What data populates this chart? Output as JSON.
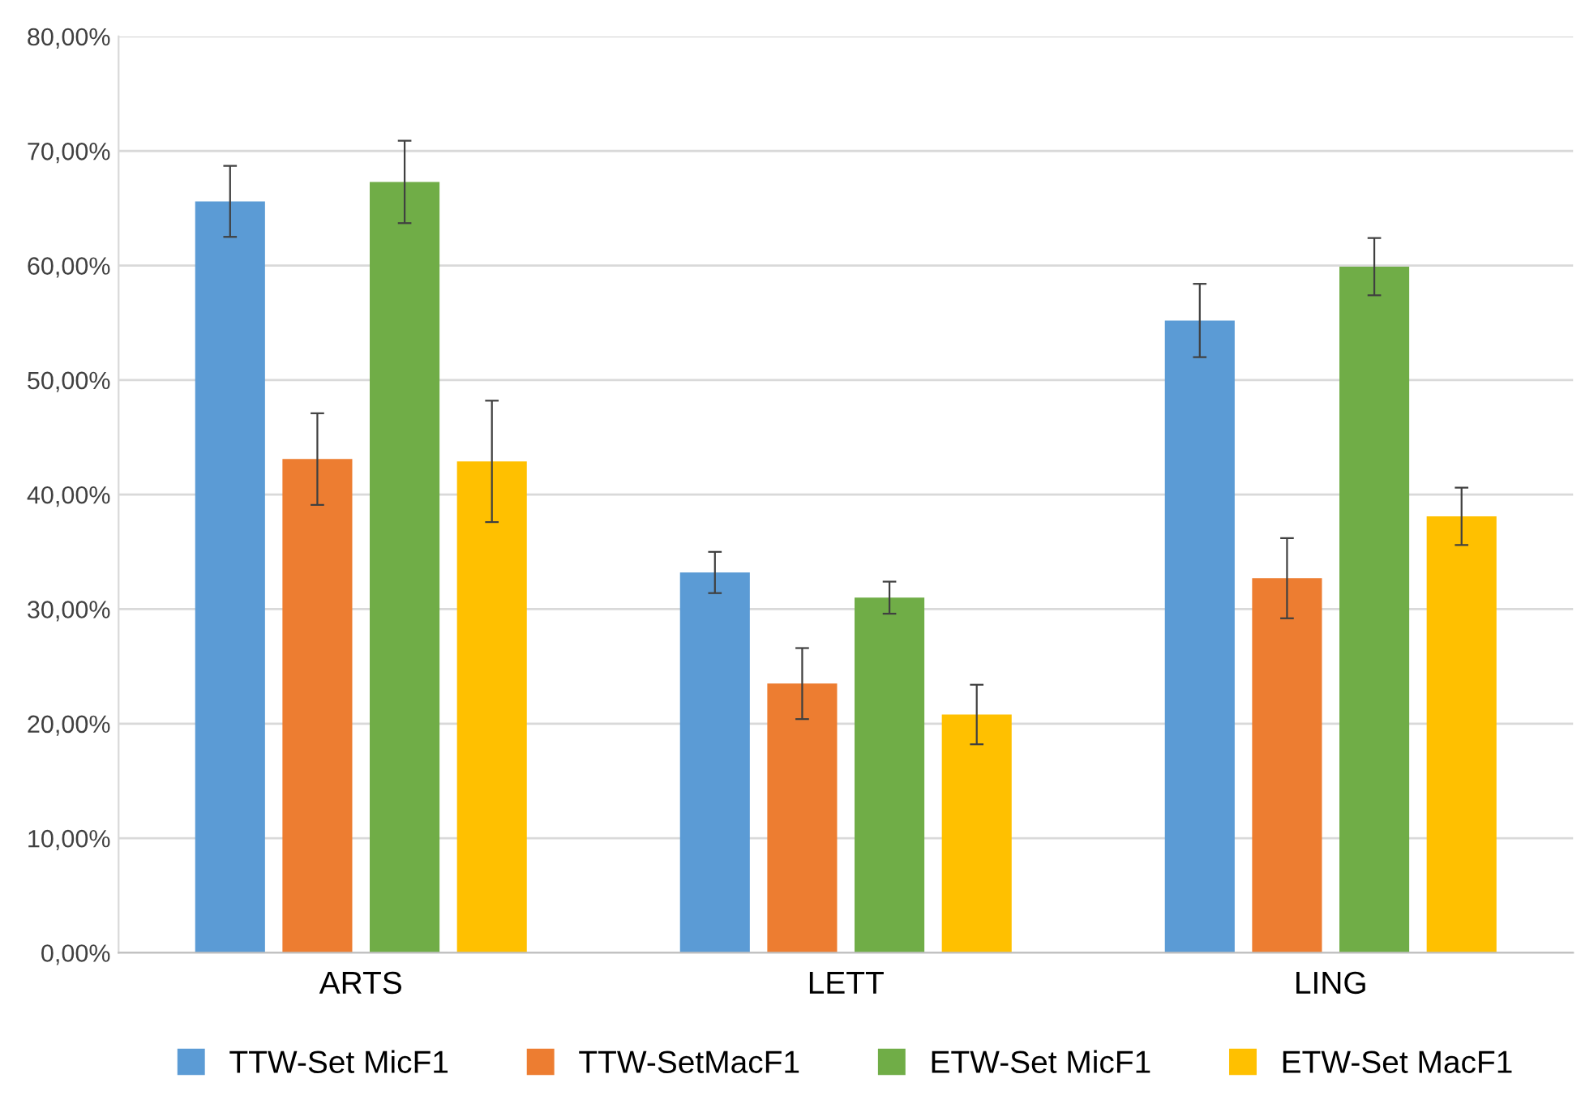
{
  "chart_data": {
    "type": "bar",
    "categories": [
      "ARTS",
      "LETT",
      "LING"
    ],
    "series": [
      {
        "name": "TTW-Set MicF1",
        "color": "#5b9bd5",
        "values": [
          65.6,
          33.2,
          55.2
        ],
        "errors": [
          3.1,
          1.8,
          3.2
        ]
      },
      {
        "name": "TTW-SetMacF1",
        "color": "#ed7d31",
        "values": [
          43.1,
          23.5,
          32.7
        ],
        "errors": [
          4.0,
          3.1,
          3.5
        ]
      },
      {
        "name": "ETW-Set MicF1",
        "color": "#70ad47",
        "values": [
          67.3,
          31.0,
          59.9
        ],
        "errors": [
          3.6,
          1.4,
          2.5
        ]
      },
      {
        "name": "ETW-Set MacF1",
        "color": "#ffc000",
        "values": [
          42.9,
          20.8,
          38.1
        ],
        "errors": [
          5.3,
          2.6,
          2.5
        ]
      }
    ],
    "ylim": [
      0,
      80
    ],
    "yticks": [
      {
        "value": 0,
        "label": "0,00%"
      },
      {
        "value": 10,
        "label": "10,00%"
      },
      {
        "value": 20,
        "label": "20,00%"
      },
      {
        "value": 30,
        "label": "30,00%"
      },
      {
        "value": 40,
        "label": "40,00%"
      },
      {
        "value": 50,
        "label": "50,00%"
      },
      {
        "value": 60,
        "label": "60,00%"
      },
      {
        "value": 70,
        "label": "70,00%"
      },
      {
        "value": 80,
        "label": "80,00%"
      }
    ],
    "grid": "y",
    "legend": "bottom"
  }
}
